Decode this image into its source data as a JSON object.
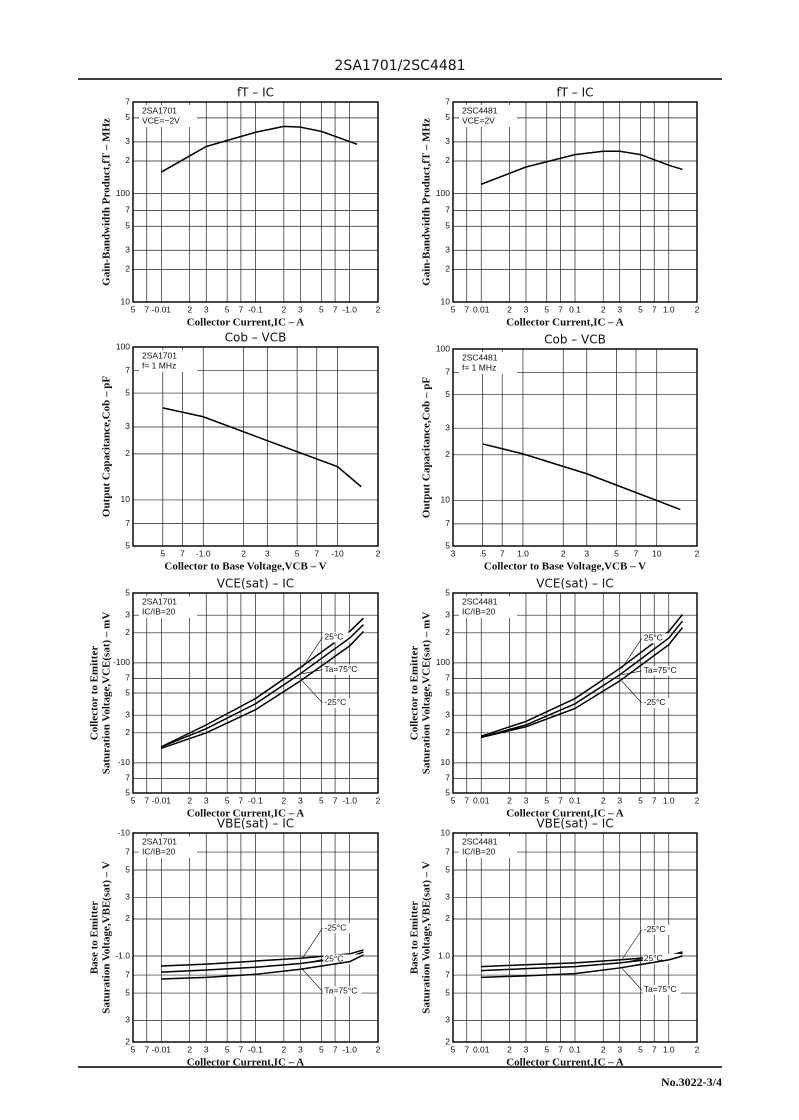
{
  "header": {
    "title": "2SA1701/2SC4481"
  },
  "footer": {
    "page": "No.3022-3/4"
  },
  "chart_data": [
    {
      "type": "line",
      "title": "fT – IC",
      "notes": [
        "2SA1701",
        "VCE=−2V"
      ],
      "xlabel": "Collector Current,IC – A",
      "ylabel": "Gain-Bandwidth Product,fT – MHz",
      "xlog": true,
      "ylog": true,
      "grid": true,
      "xlim": [
        -0.005,
        -2
      ],
      "ylim": [
        10,
        700
      ],
      "xticks": [
        {
          "value": -0.005,
          "label": "5"
        },
        {
          "value": -0.007,
          "label": "7"
        },
        -0.01,
        {
          "value": -0.02,
          "label": "2"
        },
        {
          "value": -0.03,
          "label": "3"
        },
        {
          "value": -0.05,
          "label": "5"
        },
        {
          "value": -0.07,
          "label": "7"
        },
        -0.1,
        {
          "value": -0.2,
          "label": "2"
        },
        {
          "value": -0.3,
          "label": "3"
        },
        {
          "value": -0.5,
          "label": "5"
        },
        {
          "value": -0.7,
          "label": "7"
        },
        {
          "value": -1,
          "label": "-1.0"
        },
        {
          "value": -2,
          "label": "2"
        }
      ],
      "yticks": [
        10,
        {
          "value": 20,
          "label": "2"
        },
        {
          "value": 30,
          "label": "3"
        },
        {
          "value": 50,
          "label": "5"
        },
        {
          "value": 70,
          "label": "7"
        },
        100,
        {
          "value": 200,
          "label": "2"
        },
        {
          "value": 300,
          "label": "3"
        },
        {
          "value": 500,
          "label": "5"
        },
        {
          "value": 700,
          "label": "7"
        }
      ],
      "x": [
        -0.01,
        -0.03,
        -0.1,
        -0.2,
        -0.3,
        -0.5,
        -1,
        -1.2
      ],
      "series": [
        {
          "color": "#000000",
          "values": [
            158,
            272,
            368,
            417,
            410,
            375,
            302,
            285
          ]
        }
      ]
    },
    {
      "type": "line",
      "title": "fT – IC",
      "notes": [
        "2SC4481",
        "VCE=2V"
      ],
      "xlabel": "Collector Current,IC – A",
      "ylabel": "Gain-Bandwidth Product,fT – MHz",
      "xlog": true,
      "ylog": true,
      "grid": true,
      "xlim": [
        0.005,
        2
      ],
      "ylim": [
        10,
        700
      ],
      "xticks": [
        {
          "value": 0.005,
          "label": "5"
        },
        {
          "value": 0.007,
          "label": "7"
        },
        0.01,
        {
          "value": 0.02,
          "label": "2"
        },
        {
          "value": 0.03,
          "label": "3"
        },
        {
          "value": 0.05,
          "label": "5"
        },
        {
          "value": 0.07,
          "label": "7"
        },
        0.1,
        {
          "value": 0.2,
          "label": "2"
        },
        {
          "value": 0.3,
          "label": "3"
        },
        {
          "value": 0.5,
          "label": "5"
        },
        {
          "value": 0.7,
          "label": "7"
        },
        {
          "value": 1,
          "label": "1.0"
        },
        2
      ],
      "yticks": [
        10,
        {
          "value": 20,
          "label": "2"
        },
        {
          "value": 30,
          "label": "3"
        },
        {
          "value": 50,
          "label": "5"
        },
        {
          "value": 70,
          "label": "7"
        },
        100,
        {
          "value": 200,
          "label": "2"
        },
        {
          "value": 300,
          "label": "3"
        },
        {
          "value": 500,
          "label": "5"
        },
        {
          "value": 700,
          "label": "7"
        }
      ],
      "x": [
        0.01,
        0.03,
        0.1,
        0.2,
        0.3,
        0.5,
        1,
        1.4
      ],
      "series": [
        {
          "color": "#000000",
          "values": [
            122,
            176,
            229,
            246,
            246,
            229,
            183,
            167
          ]
        }
      ]
    },
    {
      "type": "line",
      "title": "Cob – VCB",
      "notes": [
        "2SA1701",
        "f= 1 MHz"
      ],
      "xlabel": "Collector to Base Voltage,VCB – V",
      "ylabel": "Output Capacitance,Cob – pF",
      "xlog": true,
      "ylog": true,
      "grid": true,
      "xlim": [
        -0.3,
        -20
      ],
      "ylim": [
        5,
        100
      ],
      "xticks": [
        {
          "value": -0.5,
          "label": "5"
        },
        {
          "value": -0.7,
          "label": "7"
        },
        {
          "value": -1,
          "label": "-1.0"
        },
        {
          "value": -2,
          "label": "2"
        },
        {
          "value": -3,
          "label": "3"
        },
        {
          "value": -5,
          "label": "5"
        },
        {
          "value": -7,
          "label": "7"
        },
        -10,
        {
          "value": -20,
          "label": "2"
        }
      ],
      "yticks": [
        5,
        7,
        10,
        {
          "value": 20,
          "label": "2"
        },
        {
          "value": 30,
          "label": "3"
        },
        {
          "value": 50,
          "label": "5"
        },
        {
          "value": 70,
          "label": "7"
        },
        100
      ],
      "x": [
        -0.5,
        -1,
        -3,
        -10,
        -15
      ],
      "series": [
        {
          "color": "#000000",
          "values": [
            40,
            35,
            24.4,
            16.5,
            12.2
          ]
        }
      ]
    },
    {
      "type": "line",
      "title": "Cob – VCB",
      "notes": [
        "2SC4481",
        "f= 1 MHz"
      ],
      "xlabel": "Collector to Base Voltage,VCB – V",
      "ylabel": "Output Capacitance,Cob – pF",
      "xlog": true,
      "ylog": true,
      "grid": true,
      "xlim": [
        0.3,
        20
      ],
      "ylim": [
        5,
        100
      ],
      "xticks": [
        {
          "value": 0.3,
          "label": "3"
        },
        {
          "value": 0.5,
          "label": ".5"
        },
        {
          "value": 0.7,
          "label": "7"
        },
        {
          "value": 1,
          "label": "1.0"
        },
        2,
        3,
        5,
        7,
        10,
        {
          "value": 20,
          "label": "2"
        }
      ],
      "yticks": [
        5,
        7,
        10,
        {
          "value": 20,
          "label": "2"
        },
        {
          "value": 30,
          "label": "3"
        },
        {
          "value": 50,
          "label": "5"
        },
        {
          "value": 70,
          "label": "7"
        },
        100
      ],
      "x": [
        0.5,
        1,
        3,
        10,
        15
      ],
      "series": [
        {
          "color": "#000000",
          "values": [
            23.6,
            20.3,
            15,
            10,
            8.7
          ]
        }
      ]
    },
    {
      "type": "line",
      "title": "VCE(sat) – IC",
      "notes": [
        "2SA1701",
        "IC/IB=20"
      ],
      "xlabel": "Collector Current,IC – A",
      "ylabel": [
        "Collector to Emitter",
        "Saturation Voltage,VCE(sat) – mV"
      ],
      "xlog": true,
      "ylog": true,
      "grid": true,
      "xlim": [
        -0.005,
        -2
      ],
      "ylim": [
        -5,
        -500
      ],
      "xticks": [
        {
          "value": -0.005,
          "label": "5"
        },
        {
          "value": -0.007,
          "label": "7"
        },
        -0.01,
        {
          "value": -0.02,
          "label": "2"
        },
        {
          "value": -0.03,
          "label": "3"
        },
        {
          "value": -0.05,
          "label": "5"
        },
        {
          "value": -0.07,
          "label": "7"
        },
        -0.1,
        {
          "value": -0.2,
          "label": "2"
        },
        {
          "value": -0.3,
          "label": "3"
        },
        {
          "value": -0.5,
          "label": "5"
        },
        {
          "value": -0.7,
          "label": "7"
        },
        {
          "value": -1,
          "label": "-1.0"
        },
        {
          "value": -2,
          "label": "2"
        }
      ],
      "yticks": [
        {
          "value": -5,
          "label": "5"
        },
        {
          "value": -7,
          "label": "7"
        },
        -10,
        {
          "value": -20,
          "label": "2"
        },
        {
          "value": -30,
          "label": "3"
        },
        {
          "value": -50,
          "label": "5"
        },
        {
          "value": -70,
          "label": "7"
        },
        -100,
        {
          "value": -200,
          "label": "2"
        },
        {
          "value": -300,
          "label": "3"
        },
        {
          "value": -500,
          "label": "5"
        }
      ],
      "x": [
        -0.01,
        -0.03,
        -0.1,
        -0.3,
        -1,
        -1.4
      ],
      "series": [
        {
          "name": "25°C",
          "color": "#000000",
          "values": [
            -14.5,
            -24,
            -44,
            -90,
            -206,
            -280
          ]
        },
        {
          "name": "Ta=75°C",
          "color": "#000000",
          "values": [
            -14.5,
            -22,
            -39,
            -78,
            -177,
            -241
          ]
        },
        {
          "name": "-25°C",
          "color": "#000000",
          "values": [
            -14,
            -20,
            -34,
            -66,
            -148,
            -206
          ]
        }
      ]
    },
    {
      "type": "line",
      "title": "VCE(sat) – IC",
      "notes": [
        "2SC4481",
        "IC/IB=20"
      ],
      "xlabel": "Collector Current,IC – A",
      "ylabel": [
        "Collector to Emitter",
        "Saturation Voltage,VCE(sat) – mV"
      ],
      "xlog": true,
      "ylog": true,
      "grid": true,
      "xlim": [
        0.005,
        2
      ],
      "ylim": [
        5,
        500
      ],
      "xticks": [
        {
          "value": 0.005,
          "label": "5"
        },
        {
          "value": 0.007,
          "label": "7"
        },
        0.01,
        {
          "value": 0.02,
          "label": "2"
        },
        {
          "value": 0.03,
          "label": "3"
        },
        {
          "value": 0.05,
          "label": "5"
        },
        {
          "value": 0.07,
          "label": "7"
        },
        0.1,
        {
          "value": 0.2,
          "label": "2"
        },
        {
          "value": 0.3,
          "label": "3"
        },
        {
          "value": 0.5,
          "label": "5"
        },
        {
          "value": 0.7,
          "label": "7"
        },
        {
          "value": 1,
          "label": "1.0"
        },
        2
      ],
      "yticks": [
        5,
        7,
        10,
        {
          "value": 20,
          "label": "2"
        },
        {
          "value": 30,
          "label": "3"
        },
        {
          "value": 50,
          "label": "5"
        },
        {
          "value": 70,
          "label": "7"
        },
        100,
        {
          "value": 200,
          "label": "2"
        },
        {
          "value": 300,
          "label": "3"
        },
        {
          "value": 500,
          "label": "5"
        }
      ],
      "x": [
        0.01,
        0.03,
        0.1,
        0.3,
        1,
        1.4
      ],
      "series": [
        {
          "name": "25°C",
          "color": "#000000",
          "values": [
            18.5,
            26,
            44,
            88,
            206,
            305
          ]
        },
        {
          "name": "Ta=75°C",
          "color": "#000000",
          "values": [
            18,
            24,
            39,
            76,
            177,
            262
          ]
        },
        {
          "name": "-25°C",
          "color": "#000000",
          "values": [
            18,
            23,
            35,
            66,
            152,
            226
          ]
        }
      ]
    },
    {
      "type": "line",
      "title": "VBE(sat) – IC",
      "notes": [
        "2SA1701",
        "IC/IB=20"
      ],
      "xlabel": "Collector Current,IC – A",
      "ylabel": [
        "Base to Emitter",
        "Saturation Voltage,VBE(sat) – V"
      ],
      "xlog": true,
      "ylog": true,
      "grid": true,
      "xlim": [
        -0.005,
        -2
      ],
      "ylim": [
        -0.2,
        -10
      ],
      "xticks": [
        {
          "value": -0.005,
          "label": "5"
        },
        {
          "value": -0.007,
          "label": "7"
        },
        -0.01,
        {
          "value": -0.02,
          "label": "2"
        },
        {
          "value": -0.03,
          "label": "3"
        },
        {
          "value": -0.05,
          "label": "5"
        },
        {
          "value": -0.07,
          "label": "7"
        },
        -0.1,
        {
          "value": -0.2,
          "label": "2"
        },
        {
          "value": -0.3,
          "label": "3"
        },
        {
          "value": -0.5,
          "label": "5"
        },
        {
          "value": -0.7,
          "label": "7"
        },
        {
          "value": -1,
          "label": "-1.0"
        },
        {
          "value": -2,
          "label": "2"
        }
      ],
      "yticks": [
        {
          "value": -0.2,
          "label": "2"
        },
        {
          "value": -0.3,
          "label": "3"
        },
        {
          "value": -0.5,
          "label": "5"
        },
        {
          "value": -0.7,
          "label": "7"
        },
        {
          "value": -1,
          "label": "-1.0"
        },
        {
          "value": -2,
          "label": "2"
        },
        {
          "value": -3,
          "label": "3"
        },
        {
          "value": -5,
          "label": "5"
        },
        {
          "value": -7,
          "label": "7"
        },
        -10
      ],
      "x": [
        -0.01,
        -0.03,
        -0.1,
        -0.3,
        -1,
        -1.4
      ],
      "series": [
        {
          "name": "-25°C",
          "color": "#000000",
          "values": [
            -0.83,
            -0.86,
            -0.91,
            -0.96,
            -1.04,
            -1.12
          ]
        },
        {
          "name": "25°C",
          "color": "#000000",
          "values": [
            -0.74,
            -0.77,
            -0.81,
            -0.87,
            -0.98,
            -1.08
          ]
        },
        {
          "name": "Ta=75°C",
          "color": "#000000",
          "values": [
            -0.65,
            -0.67,
            -0.71,
            -0.78,
            -0.9,
            -1.02
          ]
        }
      ]
    },
    {
      "type": "line",
      "title": "VBE(sat) – IC",
      "notes": [
        "2SC4481",
        "IC/IB=20"
      ],
      "xlabel": "Collector Current,IC – A",
      "ylabel": [
        "Base to Emitter",
        "Saturation Voltage,VBE(sat) – V"
      ],
      "xlog": true,
      "ylog": true,
      "grid": true,
      "xlim": [
        0.005,
        2
      ],
      "ylim": [
        0.2,
        10
      ],
      "xticks": [
        {
          "value": 0.005,
          "label": "5"
        },
        {
          "value": 0.007,
          "label": "7"
        },
        0.01,
        {
          "value": 0.02,
          "label": "2"
        },
        {
          "value": 0.03,
          "label": "3"
        },
        {
          "value": 0.05,
          "label": "5"
        },
        {
          "value": 0.07,
          "label": "7"
        },
        0.1,
        {
          "value": 0.2,
          "label": "2"
        },
        {
          "value": 0.3,
          "label": "3"
        },
        {
          "value": 0.5,
          "label": "5"
        },
        {
          "value": 0.7,
          "label": "7"
        },
        {
          "value": 1,
          "label": "1.0"
        },
        2
      ],
      "yticks": [
        {
          "value": 0.2,
          "label": "2"
        },
        {
          "value": 0.3,
          "label": "3"
        },
        {
          "value": 0.5,
          "label": "5"
        },
        {
          "value": 0.7,
          "label": "7"
        },
        {
          "value": 1,
          "label": "1.0"
        },
        2,
        3,
        5,
        7,
        10
      ],
      "x": [
        0.01,
        0.03,
        0.1,
        0.3,
        1,
        1.4
      ],
      "series": [
        {
          "name": "-25°C",
          "color": "#000000",
          "values": [
            0.82,
            0.85,
            0.88,
            0.93,
            1.0,
            1.08
          ]
        },
        {
          "name": "25°C",
          "color": "#000000",
          "values": [
            0.76,
            0.79,
            0.82,
            0.88,
            0.98,
            1.05
          ]
        },
        {
          "name": "Ta=75°C",
          "color": "#000000",
          "values": [
            0.67,
            0.69,
            0.72,
            0.8,
            0.93,
            1.0
          ]
        }
      ]
    }
  ]
}
